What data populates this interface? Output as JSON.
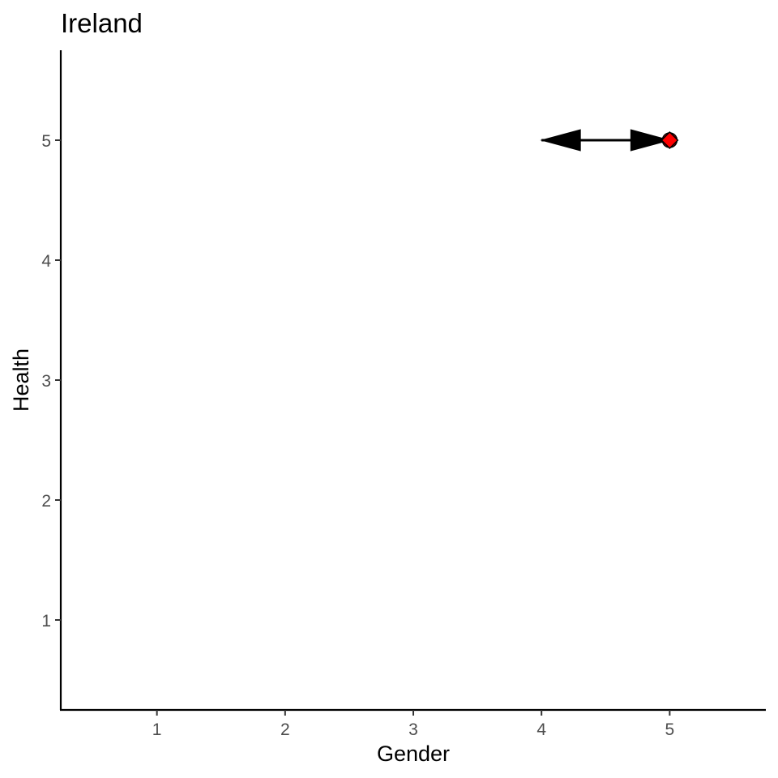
{
  "chart_data": {
    "type": "scatter",
    "title": "Ireland",
    "xlabel": "Gender",
    "ylabel": "Health",
    "xlim": [
      0.25,
      5.75
    ],
    "ylim": [
      0.25,
      5.75
    ],
    "xticks": [
      1,
      2,
      3,
      4,
      5
    ],
    "yticks": [
      1,
      2,
      3,
      4,
      5
    ],
    "grid": false,
    "points": [
      {
        "x": 5,
        "y": 5,
        "color": "#ff0000"
      }
    ],
    "arrows": [
      {
        "x_start": 4,
        "y_start": 5,
        "x_end": 5,
        "y_end": 5,
        "ends": "both",
        "color": "#000000"
      }
    ]
  }
}
